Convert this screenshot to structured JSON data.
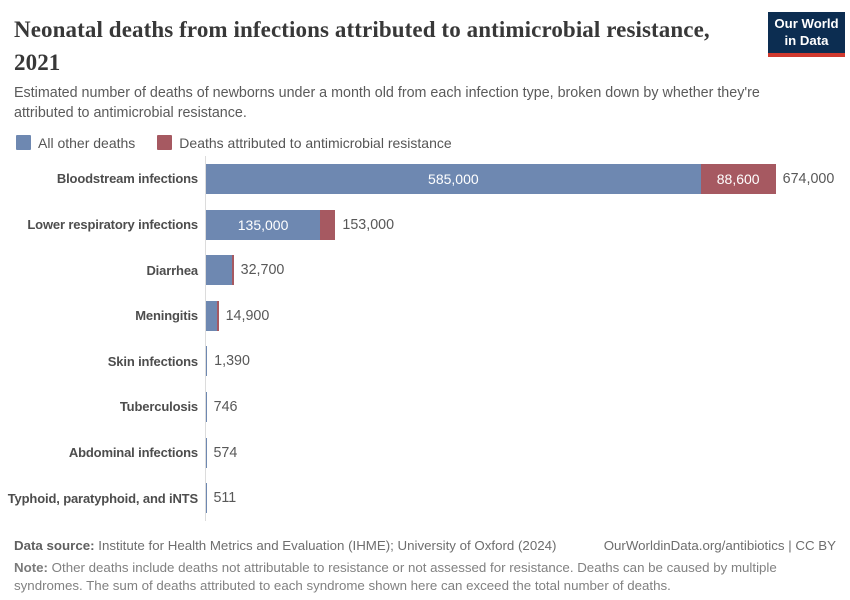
{
  "header": {
    "title_line1": "Neonatal deaths from infections attributed to antimicrobial resistance,",
    "title_line2": "2021",
    "subtitle": "Estimated number of deaths of newborns under a month old from each infection type, broken down by whether they're attributed to antimicrobial resistance.",
    "logo": {
      "line1": "Our World",
      "line2": "in Data"
    }
  },
  "legend": {
    "items": [
      {
        "label": "All other deaths",
        "color": "#6e88b1"
      },
      {
        "label": "Deaths attributed to antimicrobial resistance",
        "color": "#a65961"
      }
    ]
  },
  "chart_data": {
    "type": "bar",
    "orientation": "horizontal",
    "stacked": true,
    "title": "Neonatal deaths from infections attributed to antimicrobial resistance, 2021",
    "xlabel": "",
    "ylabel": "",
    "xlim": [
      0,
      674000
    ],
    "grid": false,
    "legend_position": "top",
    "series": [
      {
        "name": "All other deaths",
        "color": "#6e88b1"
      },
      {
        "name": "Deaths attributed to antimicrobial resistance",
        "color": "#a65961"
      }
    ],
    "rows": [
      {
        "label": "Bloodstream infections",
        "other": 585000,
        "amr": 88600,
        "total": 674000,
        "other_label": "585,000",
        "amr_label": "88,600",
        "total_label": "674,000"
      },
      {
        "label": "Lower respiratory infections",
        "other": 135000,
        "amr": 18000,
        "total": 153000,
        "other_label": "135,000",
        "total_label": "153,000"
      },
      {
        "label": "Diarrhea",
        "total": 32700,
        "amr_edge": true,
        "total_label": "32,700"
      },
      {
        "label": "Meningitis",
        "total": 14900,
        "amr_edge": true,
        "total_label": "14,900"
      },
      {
        "label": "Skin infections",
        "total": 1390,
        "total_label": "1,390"
      },
      {
        "label": "Tuberculosis",
        "total": 746,
        "total_label": "746"
      },
      {
        "label": "Abdominal infections",
        "total": 574,
        "total_label": "574"
      },
      {
        "label": "Typhoid, paratyphoid, and iNTS",
        "total": 511,
        "total_label": "511"
      }
    ]
  },
  "footer": {
    "source_label": "Data source:",
    "source_text": " Institute for Health Metrics and Evaluation (IHME); University of Oxford (2024)",
    "link_text": "OurWorldinData.org/antibiotics | CC BY",
    "note_label": "Note:",
    "note_text": " Other deaths include deaths not attributable to resistance or not assessed for resistance. Deaths can be caused by multiple syndromes. The sum of deaths attributed to each syndrome shown here can exceed the total number of deaths."
  }
}
